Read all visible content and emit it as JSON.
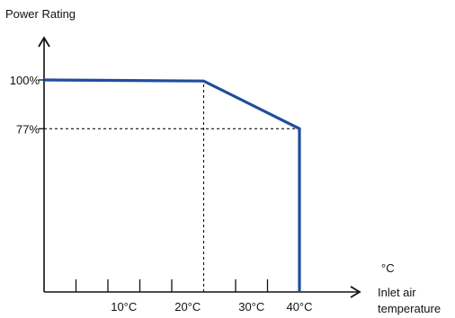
{
  "chart_data": {
    "type": "line",
    "ylabel": "Power Rating",
    "xlabel_lines": [
      "Inlet air",
      "temperature"
    ],
    "x_unit": "°C",
    "x_tick_labels": [
      {
        "x": 12.5,
        "label": "10°C"
      },
      {
        "x": 22.5,
        "label": "20°C"
      },
      {
        "x": 32.5,
        "label": "30°C"
      },
      {
        "x": 40,
        "label": "40°C"
      }
    ],
    "x_minor_ticks": [
      5,
      10,
      15,
      20,
      30,
      35
    ],
    "y_tick_labels": [
      {
        "y": 100,
        "label": "100%"
      },
      {
        "y": 77,
        "label": "77%"
      }
    ],
    "xlim": [
      0,
      50
    ],
    "ylim": [
      0,
      100
    ],
    "series": [
      {
        "points": [
          {
            "x": 0,
            "y": 100
          },
          {
            "x": 25,
            "y": 99.5
          },
          {
            "x": 40,
            "y": 77
          },
          {
            "x": 40,
            "y": 0
          }
        ],
        "color": "#1f4e9c"
      }
    ],
    "reference_lines": [
      {
        "orientation": "horizontal",
        "y": 77,
        "from_x": 0,
        "to_x": 40
      },
      {
        "orientation": "vertical",
        "x": 25,
        "from_y": 0,
        "to_y": 99.5
      }
    ],
    "axis_color": "#111111",
    "grid": false
  }
}
